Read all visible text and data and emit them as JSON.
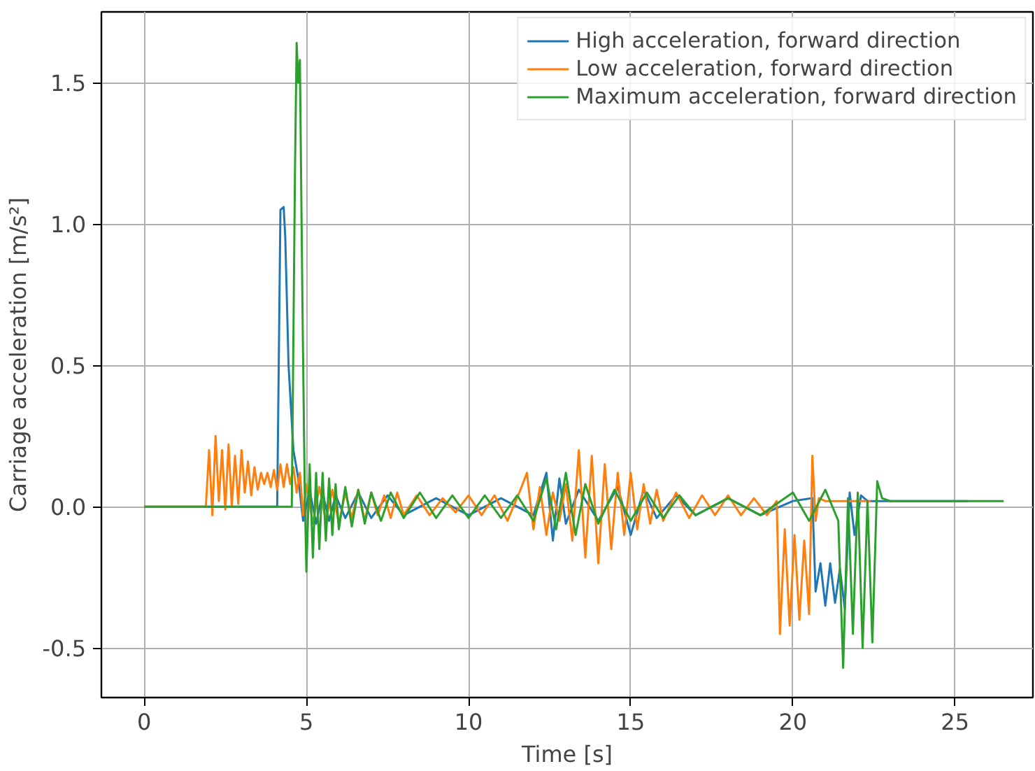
{
  "chart_data": {
    "type": "line",
    "xlabel": "Time [s]",
    "ylabel": "Carriage acceleration [m/s²]",
    "xlim": [
      -1.32,
      27.4
    ],
    "ylim": [
      -0.675,
      1.75
    ],
    "xticks": [
      0,
      5,
      10,
      15,
      20,
      25
    ],
    "yticks": [
      -0.5,
      {
        "value": 0,
        "label": "0.0"
      },
      0.5,
      {
        "value": 1,
        "label": "1.0"
      },
      1.5
    ],
    "grid": true,
    "legend": "top right",
    "marker": "none",
    "line_style": "solid",
    "series": [
      {
        "name": "High acceleration, forward direction",
        "color": "#1f77b4",
        "x": [
          0,
          4.1,
          4.2,
          4.3,
          4.35,
          4.45,
          4.6,
          4.75,
          4.9,
          5.1,
          5.3,
          5.5,
          5.7,
          5.9,
          6.2,
          6.6,
          7.0,
          7.5,
          8.0,
          9.0,
          10,
          11,
          12,
          12.4,
          12.6,
          12.8,
          13,
          13.4,
          14,
          14.6,
          15,
          15.4,
          15.8,
          16.4,
          17,
          18,
          19,
          20,
          20.6,
          20.7,
          20.85,
          21,
          21.15,
          21.3,
          21.45,
          21.6,
          21.75,
          21.9,
          22.1,
          22.3,
          22.6,
          25.4
        ],
        "values": [
          0,
          0,
          1.05,
          1.06,
          0.95,
          0.5,
          0.2,
          0.1,
          -0.05,
          0.06,
          -0.06,
          0.05,
          -0.05,
          0.04,
          -0.04,
          0.05,
          -0.04,
          0.04,
          -0.03,
          0.03,
          -0.03,
          0.03,
          -0.03,
          0.12,
          -0.12,
          0.1,
          -0.06,
          0.06,
          -0.05,
          0.07,
          -0.1,
          0.06,
          -0.04,
          0.04,
          -0.03,
          0.03,
          -0.03,
          0.02,
          0.03,
          -0.3,
          -0.2,
          -0.35,
          -0.2,
          -0.34,
          -0.22,
          -0.36,
          0.05,
          -0.1,
          0.04,
          0.02,
          0.02,
          0.02
        ]
      },
      {
        "name": "Low acceleration, forward direction",
        "color": "#ff7f0e",
        "x": [
          0,
          1.9,
          2.0,
          2.1,
          2.2,
          2.3,
          2.4,
          2.5,
          2.6,
          2.7,
          2.8,
          2.9,
          3.0,
          3.1,
          3.2,
          3.3,
          3.4,
          3.5,
          3.6,
          3.7,
          3.8,
          3.9,
          4.0,
          4.1,
          4.2,
          4.3,
          4.4,
          4.5,
          4.6,
          4.7,
          4.8,
          4.9,
          5.0,
          5.2,
          5.4,
          5.6,
          5.8,
          6.0,
          6.2,
          6.4,
          6.6,
          6.8,
          7.0,
          7.2,
          7.4,
          7.6,
          7.8,
          8.0,
          8.4,
          8.8,
          9.2,
          9.6,
          10.0,
          10.4,
          10.8,
          11.2,
          11.6,
          11.8,
          12.0,
          12.2,
          12.4,
          12.6,
          12.8,
          13.0,
          13.2,
          13.4,
          13.6,
          13.8,
          14.0,
          14.2,
          14.4,
          14.6,
          14.8,
          15.0,
          15.2,
          15.4,
          15.6,
          15.8,
          16.0,
          16.4,
          16.8,
          17.2,
          17.6,
          18.0,
          18.4,
          18.8,
          19.2,
          19.5,
          19.6,
          19.75,
          19.9,
          20.05,
          20.2,
          20.35,
          20.5,
          20.6,
          20.7,
          20.8,
          21.0,
          22.4
        ],
        "values": [
          0,
          0,
          0.2,
          -0.03,
          0.25,
          0.02,
          0.2,
          -0.01,
          0.22,
          0.0,
          0.18,
          0.01,
          0.2,
          0.05,
          0.16,
          0.04,
          0.14,
          0.06,
          0.12,
          0.08,
          0.12,
          0.07,
          0.13,
          0.06,
          0.15,
          0.07,
          0.15,
          0.08,
          0.14,
          0.05,
          0.12,
          -0.03,
          0.08,
          -0.06,
          0.07,
          -0.05,
          0.06,
          -0.06,
          0.05,
          -0.04,
          0.06,
          -0.05,
          0.05,
          -0.03,
          0.04,
          -0.04,
          0.05,
          -0.03,
          0.04,
          -0.03,
          0.03,
          -0.02,
          0.04,
          -0.03,
          0.04,
          -0.05,
          0.06,
          0.12,
          -0.08,
          0.07,
          -0.1,
          0.05,
          -0.05,
          0.08,
          -0.12,
          0.2,
          -0.18,
          0.18,
          -0.2,
          0.15,
          -0.15,
          0.12,
          -0.1,
          0.12,
          -0.08,
          0.08,
          -0.06,
          0.06,
          -0.05,
          0.05,
          -0.04,
          0.04,
          -0.03,
          0.04,
          -0.03,
          0.03,
          -0.03,
          0.02,
          -0.45,
          -0.08,
          -0.42,
          -0.1,
          -0.4,
          -0.12,
          -0.38,
          0.18,
          -0.05,
          0.03,
          0.02,
          0.02
        ]
      },
      {
        "name": "Maximum acceleration, forward direction",
        "color": "#2ca02c",
        "x": [
          0,
          4.55,
          4.65,
          4.7,
          4.75,
          4.8,
          4.88,
          4.95,
          5.0,
          5.1,
          5.2,
          5.3,
          5.4,
          5.5,
          5.6,
          5.7,
          5.8,
          5.9,
          6.0,
          6.2,
          6.4,
          6.6,
          6.8,
          7.0,
          7.3,
          7.6,
          8.0,
          8.5,
          9.0,
          9.5,
          10,
          10.5,
          11,
          11.5,
          12,
          12.4,
          12.7,
          13,
          13.3,
          13.6,
          14,
          14.5,
          15,
          15.5,
          16,
          16.5,
          17,
          18,
          19,
          20,
          20.5,
          21,
          21.4,
          21.55,
          21.7,
          21.85,
          22,
          22.15,
          22.3,
          22.45,
          22.6,
          22.75,
          23,
          26.5
        ],
        "values": [
          0,
          0,
          1.2,
          1.64,
          1.5,
          1.58,
          0.7,
          0.05,
          -0.23,
          0.15,
          -0.18,
          0.12,
          -0.15,
          0.12,
          -0.12,
          0.1,
          -0.1,
          0.08,
          -0.08,
          0.07,
          -0.07,
          0.06,
          -0.06,
          0.05,
          -0.05,
          0.05,
          -0.04,
          0.05,
          -0.04,
          0.04,
          -0.04,
          0.04,
          -0.04,
          0.04,
          -0.05,
          0.1,
          -0.08,
          0.12,
          -0.1,
          0.08,
          -0.06,
          0.06,
          -0.05,
          0.05,
          -0.04,
          0.04,
          -0.03,
          0.03,
          -0.03,
          0.05,
          -0.05,
          0.06,
          -0.05,
          -0.57,
          0.03,
          -0.45,
          0.05,
          -0.5,
          0.02,
          -0.48,
          0.09,
          0.03,
          0.02,
          0.02
        ]
      }
    ]
  }
}
